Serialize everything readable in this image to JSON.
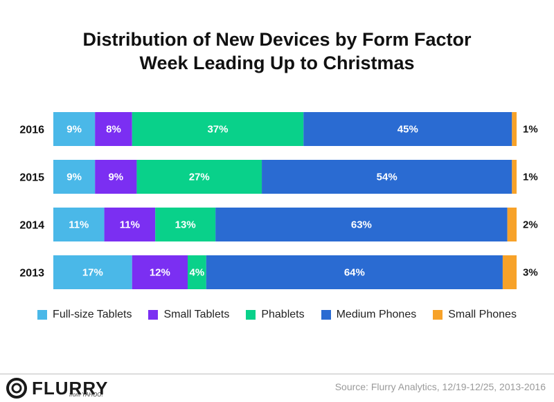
{
  "title_line1": "Distribution of New Devices by Form Factor",
  "title_line2": "Week Leading Up to Christmas",
  "colors": {
    "full_size_tablets": "#4ab8e8",
    "small_tablets": "#7b2ff2",
    "phablets": "#09d18a",
    "medium_phones": "#2a6bd2",
    "small_phones": "#f7a229"
  },
  "chart_data": {
    "type": "bar",
    "orientation": "horizontal",
    "stacked": true,
    "categories": [
      "2016",
      "2015",
      "2014",
      "2013"
    ],
    "series": [
      {
        "name": "Full-size Tablets",
        "values": [
          9,
          9,
          11,
          17
        ],
        "color": "#4ab8e8"
      },
      {
        "name": "Small Tablets",
        "values": [
          8,
          9,
          11,
          12
        ],
        "color": "#7b2ff2"
      },
      {
        "name": "Phablets",
        "values": [
          37,
          27,
          13,
          4
        ],
        "color": "#09d18a"
      },
      {
        "name": "Medium Phones",
        "values": [
          45,
          54,
          63,
          64
        ],
        "color": "#2a6bd2"
      },
      {
        "name": "Small Phones",
        "values": [
          1,
          1,
          2,
          3
        ],
        "color": "#f7a229"
      }
    ],
    "xlim": [
      0,
      100
    ],
    "unit": "%",
    "legend_position": "bottom"
  },
  "legend": [
    {
      "label": "Full-size Tablets",
      "color": "#4ab8e8"
    },
    {
      "label": "Small Tablets",
      "color": "#7b2ff2"
    },
    {
      "label": "Phablets",
      "color": "#09d18a"
    },
    {
      "label": "Medium Phones",
      "color": "#2a6bd2"
    },
    {
      "label": "Small Phones",
      "color": "#f7a229"
    }
  ],
  "footer": {
    "logo_text": "FLURRY",
    "logo_sub": "from YAHOO!",
    "source": "Source: Flurry Analytics, 12/19-12/25, 2013-2016"
  }
}
